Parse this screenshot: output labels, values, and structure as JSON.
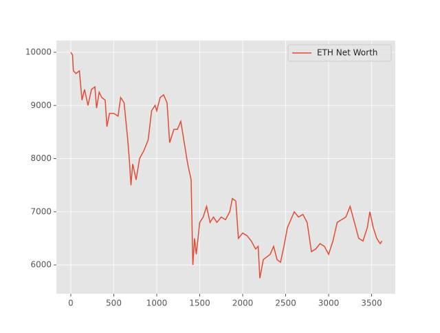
{
  "chart_data": {
    "type": "line",
    "x": [
      0,
      20,
      30,
      60,
      100,
      130,
      160,
      200,
      240,
      280,
      300,
      330,
      360,
      400,
      420,
      450,
      500,
      550,
      580,
      620,
      660,
      680,
      700,
      720,
      760,
      800,
      850,
      900,
      940,
      980,
      1000,
      1040,
      1080,
      1120,
      1150,
      1200,
      1240,
      1280,
      1320,
      1360,
      1400,
      1420,
      1440,
      1460,
      1500,
      1540,
      1580,
      1620,
      1660,
      1700,
      1750,
      1800,
      1850,
      1880,
      1920,
      1950,
      2000,
      2050,
      2100,
      2150,
      2180,
      2200,
      2240,
      2280,
      2320,
      2360,
      2400,
      2440,
      2480,
      2520,
      2560,
      2600,
      2650,
      2700,
      2750,
      2800,
      2850,
      2900,
      2950,
      3000,
      3050,
      3100,
      3150,
      3200,
      3250,
      3300,
      3350,
      3400,
      3450,
      3480,
      3520,
      3560,
      3600,
      3620
    ],
    "series": [
      {
        "name": "ETH Net Worth",
        "color": "#E24A33",
        "values": [
          10000,
          9950,
          9650,
          9600,
          9650,
          9100,
          9300,
          9000,
          9300,
          9350,
          8950,
          9250,
          9150,
          9100,
          8600,
          8850,
          8850,
          8800,
          9150,
          9050,
          8400,
          8000,
          7500,
          7900,
          7600,
          8000,
          8150,
          8350,
          8900,
          9000,
          8900,
          9150,
          9200,
          9050,
          8300,
          8550,
          8550,
          8700,
          8300,
          7900,
          7600,
          6000,
          6500,
          6200,
          6800,
          6900,
          7100,
          6800,
          6900,
          6800,
          6900,
          6850,
          7000,
          7250,
          7200,
          6500,
          6600,
          6550,
          6450,
          6300,
          6350,
          5750,
          6100,
          6150,
          6200,
          6350,
          6100,
          6050,
          6350,
          6700,
          6850,
          7000,
          6900,
          6950,
          6800,
          6250,
          6300,
          6400,
          6350,
          6200,
          6450,
          6800,
          6850,
          6900,
          7100,
          6800,
          6500,
          6450,
          6700,
          7000,
          6700,
          6500,
          6400,
          6450
        ]
      }
    ],
    "xlim": [
      -168,
      3776
    ],
    "ylim": [
      5457,
      10220
    ],
    "xticks": [
      0,
      500,
      1000,
      1500,
      2000,
      2500,
      3000,
      3500
    ],
    "yticks": [
      6000,
      7000,
      8000,
      9000,
      10000
    ],
    "grid": true,
    "legend": "upper right"
  }
}
